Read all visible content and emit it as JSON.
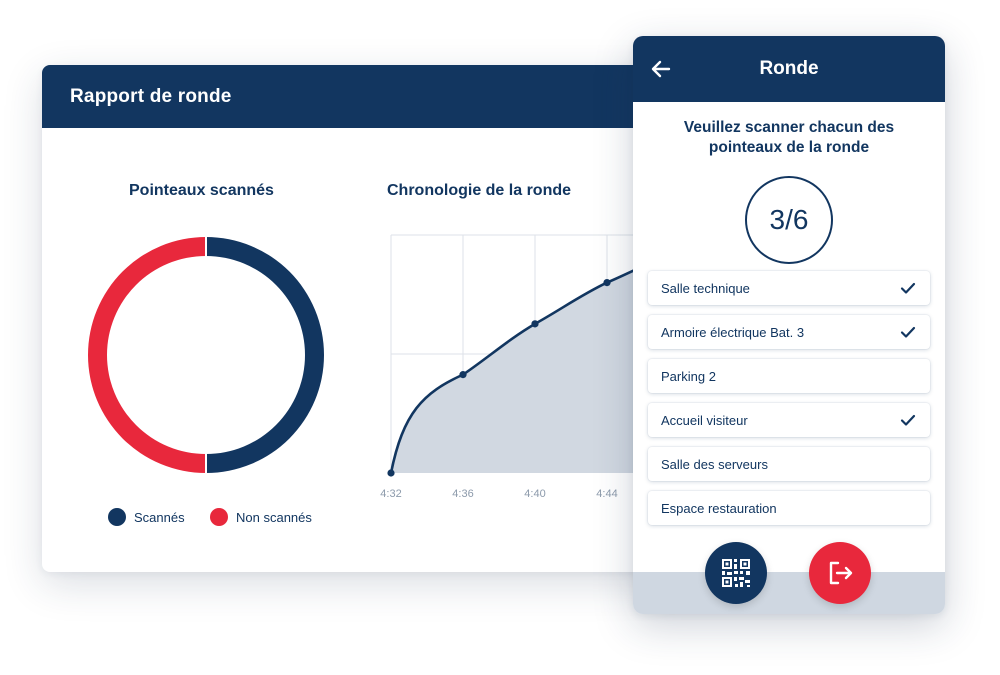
{
  "report": {
    "title": "Rapport de ronde",
    "donut_title": "Pointeaux scannés",
    "timeline_title": "Chronologie de la ronde",
    "legend": [
      {
        "label": "Scannés",
        "color": "#123660"
      },
      {
        "label": "Non scannés",
        "color": "#e8283c"
      }
    ]
  },
  "chart_data": [
    {
      "type": "pie",
      "title": "Pointeaux scannés",
      "donut": true,
      "categories": [
        "Scannés",
        "Non scannés"
      ],
      "values": [
        3,
        3
      ],
      "colors": [
        "#123660",
        "#e8283c"
      ],
      "legend": "bottom"
    },
    {
      "type": "area",
      "title": "Chronologie de la ronde",
      "x": [
        "4:32",
        "4:36",
        "4:40",
        "4:44"
      ],
      "y": [
        0,
        3.1,
        4.7,
        6.0
      ],
      "extra_y_at_cut_edge": 7.0,
      "grid": true,
      "color": "#123660",
      "fill": "#d1d8e1"
    }
  ],
  "phone": {
    "title": "Ronde",
    "instruction": "Veuillez scanner chacun des pointeaux de la ronde",
    "counter": "3/6",
    "items": [
      {
        "label": "Salle technique",
        "checked": true
      },
      {
        "label": "Armoire électrique Bat. 3",
        "checked": true
      },
      {
        "label": "Parking 2",
        "checked": false
      },
      {
        "label": "Accueil visiteur",
        "checked": true
      },
      {
        "label": "Salle des serveurs",
        "checked": false
      },
      {
        "label": "Espace restauration",
        "checked": false
      }
    ],
    "icons": {
      "back": "arrow-left-icon",
      "qr": "qr-code-icon",
      "exit": "exit-icon",
      "check": "check-icon"
    },
    "colors": {
      "primary": "#123660",
      "danger": "#e8283c"
    }
  }
}
